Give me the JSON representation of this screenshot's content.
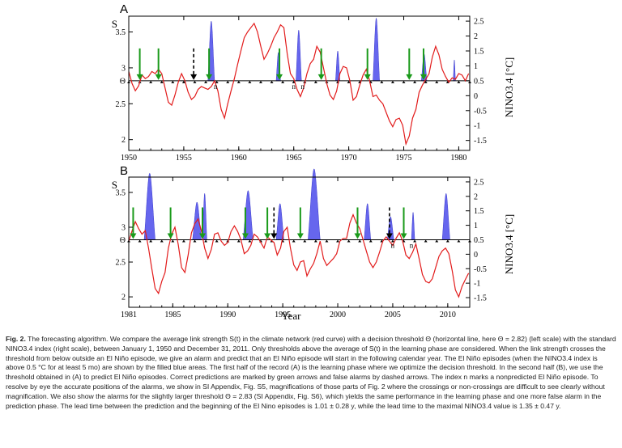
{
  "chart_data": [
    {
      "panel": "A",
      "type": "line",
      "xlim": [
        1950,
        1981
      ],
      "xticks": [
        "1950",
        "1955",
        "1960",
        "1965",
        "1970",
        "1975",
        "1980"
      ],
      "y_left": {
        "label": "S",
        "ticks": [
          "2",
          "2.5",
          "3",
          "3.5"
        ],
        "ylim": [
          1.85,
          3.72
        ],
        "theta_label": "Θ",
        "theta": 2.82
      },
      "y_right": {
        "label": "NINO3.4 [°C]",
        "ticks": [
          "-1.5",
          "-1",
          "-0.5",
          "0",
          "0.5",
          "1",
          "1.5",
          "2",
          "2.5"
        ]
      },
      "series": [
        {
          "name": "S(t)",
          "color": "#e21b1b",
          "x": [
            1950.0,
            1950.3,
            1950.6,
            1950.9,
            1951.2,
            1951.5,
            1951.8,
            1952.1,
            1952.4,
            1952.7,
            1953.0,
            1953.3,
            1953.6,
            1953.9,
            1954.2,
            1954.5,
            1954.8,
            1955.1,
            1955.4,
            1955.7,
            1956.0,
            1956.3,
            1956.6,
            1956.9,
            1957.2,
            1957.5,
            1957.8,
            1958.1,
            1958.4,
            1958.7,
            1959.0,
            1959.3,
            1959.6,
            1959.9,
            1960.2,
            1960.5,
            1960.8,
            1961.1,
            1961.4,
            1961.7,
            1962.0,
            1962.3,
            1962.6,
            1962.9,
            1963.2,
            1963.5,
            1963.8,
            1964.1,
            1964.4,
            1964.7,
            1965.0,
            1965.3,
            1965.6,
            1965.9,
            1966.2,
            1966.5,
            1966.8,
            1967.1,
            1967.4,
            1967.7,
            1968.0,
            1968.3,
            1968.6,
            1968.9,
            1969.2,
            1969.5,
            1969.8,
            1970.1,
            1970.4,
            1970.7,
            1971.0,
            1971.3,
            1971.6,
            1971.9,
            1972.2,
            1972.5,
            1972.8,
            1973.1,
            1973.4,
            1973.7,
            1974.0,
            1974.3,
            1974.6,
            1974.9,
            1975.2,
            1975.5,
            1975.8,
            1976.1,
            1976.4,
            1976.7,
            1977.0,
            1977.3,
            1977.6,
            1977.9,
            1978.2,
            1978.5,
            1978.8,
            1979.1,
            1979.4,
            1979.7,
            1980.0,
            1980.3,
            1980.6,
            1980.9
          ],
          "y": [
            2.95,
            2.78,
            2.68,
            2.75,
            2.9,
            2.85,
            2.88,
            2.95,
            2.92,
            2.98,
            2.92,
            2.72,
            2.52,
            2.48,
            2.62,
            2.8,
            2.92,
            2.82,
            2.66,
            2.56,
            2.6,
            2.7,
            2.74,
            2.72,
            2.7,
            2.74,
            2.82,
            2.68,
            2.42,
            2.3,
            2.5,
            2.68,
            2.85,
            3.05,
            3.24,
            3.42,
            3.5,
            3.56,
            3.62,
            3.5,
            3.3,
            3.12,
            3.2,
            3.3,
            3.42,
            3.5,
            3.6,
            3.56,
            3.2,
            2.92,
            2.85,
            2.7,
            2.6,
            2.72,
            2.92,
            3.06,
            3.12,
            3.3,
            3.22,
            3.0,
            2.78,
            2.62,
            2.56,
            2.68,
            2.92,
            3.02,
            3.0,
            2.82,
            2.55,
            2.6,
            2.76,
            2.9,
            2.98,
            2.82,
            2.6,
            2.62,
            2.55,
            2.5,
            2.38,
            2.26,
            2.18,
            2.28,
            2.3,
            2.2,
            1.94,
            2.05,
            2.3,
            2.42,
            2.66,
            2.76,
            2.84,
            2.92,
            3.15,
            3.3,
            3.18,
            2.98,
            2.88,
            2.8,
            2.86,
            2.84,
            2.92,
            2.9,
            2.82,
            2.92
          ]
        },
        {
          "name": "NINO3.4",
          "color": "#6666ee",
          "events": [
            [
              1957.2,
              1957.8,
              2.0
            ],
            [
              1963.4,
              1963.8,
              0.95
            ],
            [
              1965.2,
              1965.7,
              1.7
            ],
            [
              1968.8,
              1969.2,
              1.0
            ],
            [
              1972.2,
              1972.8,
              2.1
            ],
            [
              1976.6,
              1977.1,
              0.9
            ],
            [
              1979.5,
              1979.7,
              0.7
            ]
          ]
        }
      ],
      "correct_alarms": [
        1951.0,
        1952.7,
        1957.3,
        1963.7,
        1967.5,
        1971.7,
        1975.5,
        1976.8
      ],
      "false_alarms": [
        1955.9
      ],
      "nonpredicted": [
        1957.9,
        1965.0,
        1965.8
      ]
    },
    {
      "panel": "B",
      "type": "line",
      "xlim": [
        1981,
        2012
      ],
      "xticks": [
        "1981",
        "1985",
        "1990",
        "1995",
        "2000",
        "2005",
        "2010"
      ],
      "xlabel": "Year",
      "y_left": {
        "label": "S",
        "ticks": [
          "2",
          "2.5",
          "3",
          "3.5"
        ],
        "ylim": [
          1.85,
          3.72
        ],
        "theta_label": "Θ",
        "theta": 2.82
      },
      "y_right": {
        "label": "NINO3.4 [°C]",
        "ticks": [
          "-1.5",
          "-1",
          "-0.5",
          "0",
          "0.5",
          "1",
          "1.5",
          "2",
          "2.5"
        ]
      },
      "series": [
        {
          "name": "S(t)",
          "color": "#e21b1b",
          "x": [
            1981.0,
            1981.3,
            1981.6,
            1981.9,
            1982.2,
            1982.5,
            1982.8,
            1983.1,
            1983.4,
            1983.7,
            1984.0,
            1984.3,
            1984.6,
            1984.9,
            1985.2,
            1985.5,
            1985.8,
            1986.1,
            1986.4,
            1986.7,
            1987.0,
            1987.3,
            1987.6,
            1987.9,
            1988.2,
            1988.5,
            1988.8,
            1989.1,
            1989.4,
            1989.7,
            1990.0,
            1990.3,
            1990.6,
            1990.9,
            1991.2,
            1991.5,
            1991.8,
            1992.1,
            1992.4,
            1992.7,
            1993.0,
            1993.3,
            1993.6,
            1993.9,
            1994.2,
            1994.5,
            1994.8,
            1995.1,
            1995.4,
            1995.7,
            1996.0,
            1996.3,
            1996.6,
            1996.9,
            1997.2,
            1997.5,
            1997.8,
            1998.1,
            1998.4,
            1998.7,
            1999.0,
            1999.3,
            1999.6,
            1999.9,
            2000.2,
            2000.5,
            2000.8,
            2001.1,
            2001.4,
            2001.7,
            2002.0,
            2002.3,
            2002.6,
            2002.9,
            2003.2,
            2003.5,
            2003.8,
            2004.1,
            2004.4,
            2004.7,
            2005.0,
            2005.3,
            2005.6,
            2005.9,
            2006.2,
            2006.5,
            2006.8,
            2007.1,
            2007.4,
            2007.7,
            2008.0,
            2008.3,
            2008.6,
            2008.9,
            2009.2,
            2009.5,
            2009.8,
            2010.1,
            2010.4,
            2010.7,
            2011.0,
            2011.3,
            2011.6,
            2011.9
          ],
          "y": [
            2.8,
            2.95,
            3.08,
            2.98,
            2.9,
            2.95,
            2.7,
            2.4,
            2.12,
            2.05,
            2.22,
            2.35,
            2.7,
            2.9,
            3.0,
            2.75,
            2.42,
            2.35,
            2.6,
            2.92,
            3.05,
            3.12,
            2.95,
            2.7,
            2.55,
            2.68,
            2.9,
            2.92,
            2.8,
            2.74,
            2.78,
            2.94,
            3.02,
            2.94,
            2.82,
            2.62,
            2.66,
            2.74,
            2.9,
            2.86,
            2.78,
            2.7,
            2.86,
            2.82,
            2.78,
            2.6,
            2.7,
            2.94,
            3.0,
            2.7,
            2.46,
            2.38,
            2.5,
            2.52,
            2.3,
            2.4,
            2.48,
            2.62,
            2.8,
            2.55,
            2.45,
            2.5,
            2.55,
            2.62,
            2.8,
            2.84,
            2.84,
            3.06,
            3.18,
            3.06,
            2.98,
            2.82,
            2.66,
            2.5,
            2.42,
            2.5,
            2.64,
            2.8,
            2.86,
            2.8,
            2.74,
            2.84,
            2.92,
            2.8,
            2.6,
            2.55,
            2.64,
            2.76,
            2.55,
            2.32,
            2.22,
            2.2,
            2.26,
            2.42,
            2.58,
            2.66,
            2.7,
            2.62,
            2.38,
            2.1,
            2.0,
            2.15,
            2.25,
            2.34
          ]
        },
        {
          "name": "NINO3.4",
          "color": "#6666ee",
          "events": [
            [
              1982.4,
              1983.4,
              2.3
            ],
            [
              1986.8,
              1987.6,
              1.3
            ],
            [
              1987.7,
              1988.1,
              1.6
            ],
            [
              1991.4,
              1992.3,
              1.7
            ],
            [
              1994.4,
              1995.1,
              1.25
            ],
            [
              1997.3,
              1998.4,
              2.45
            ],
            [
              2002.4,
              2003.0,
              1.25
            ],
            [
              2004.5,
              2005.1,
              0.8
            ],
            [
              2006.7,
              2007.0,
              0.95
            ],
            [
              2009.5,
              2010.2,
              1.6
            ]
          ]
        }
      ],
      "correct_alarms": [
        1981.4,
        1984.8,
        1987.7,
        1991.6,
        1993.6,
        1996.6,
        2001.8,
        2006.0
      ],
      "false_alarms": [
        1994.2,
        2004.7
      ],
      "nonpredicted": [
        2005.0,
        2006.7
      ]
    }
  ],
  "panel_letters": {
    "a": "A",
    "b": "B"
  },
  "right_axis_label": "NINO3.4 [°C]",
  "nonpredicted_mark": "n",
  "caption": {
    "label": "Fig. 2.",
    "text": "The forecasting algorithm. We compare the average link strength S(t) in the climate network (red curve) with a decision threshold Θ (horizontal line, here Θ = 2.82) (left scale) with the standard NINO3.4 index (right scale), between January 1, 1950 and December 31, 2011. Only thresholds above the average of S(t) in the learning phase are considered. When the link strength crosses the threshold from below outside an El Niño episode, we give an alarm and predict that an El Niño episode will start in the following calendar year. The El Niño episodes (when the NINO3.4 index is above 0.5 °C for at least 5 mo) are shown by the filled blue areas. The first half of the record (A) is the learning phase where we optimize the decision threshold. In the second half (B), we use the threshold obtained in (A) to predict El Niño episodes. Correct predictions are marked by green arrows and false alarms by dashed arrows. The index n marks a nonpredicted El Niño episode. To resolve by eye the accurate positions of the alarms, we show in SI Appendix, Fig. S5, magnifications of those parts of Fig. 2 where the crossings or non-crossings are difficult to see clearly without magnification. We also show the alarms for the slightly larger threshold Θ = 2.83 (SI Appendix, Fig. S6), which yields the same performance in the learning phase and one more false alarm in the prediction phase. The lead time between the prediction and the beginning of the El Nino episodes is 1.01 ± 0.28 y, while the lead time to the maximal NINO3.4 value is 1.35 ± 0.47 y."
  }
}
